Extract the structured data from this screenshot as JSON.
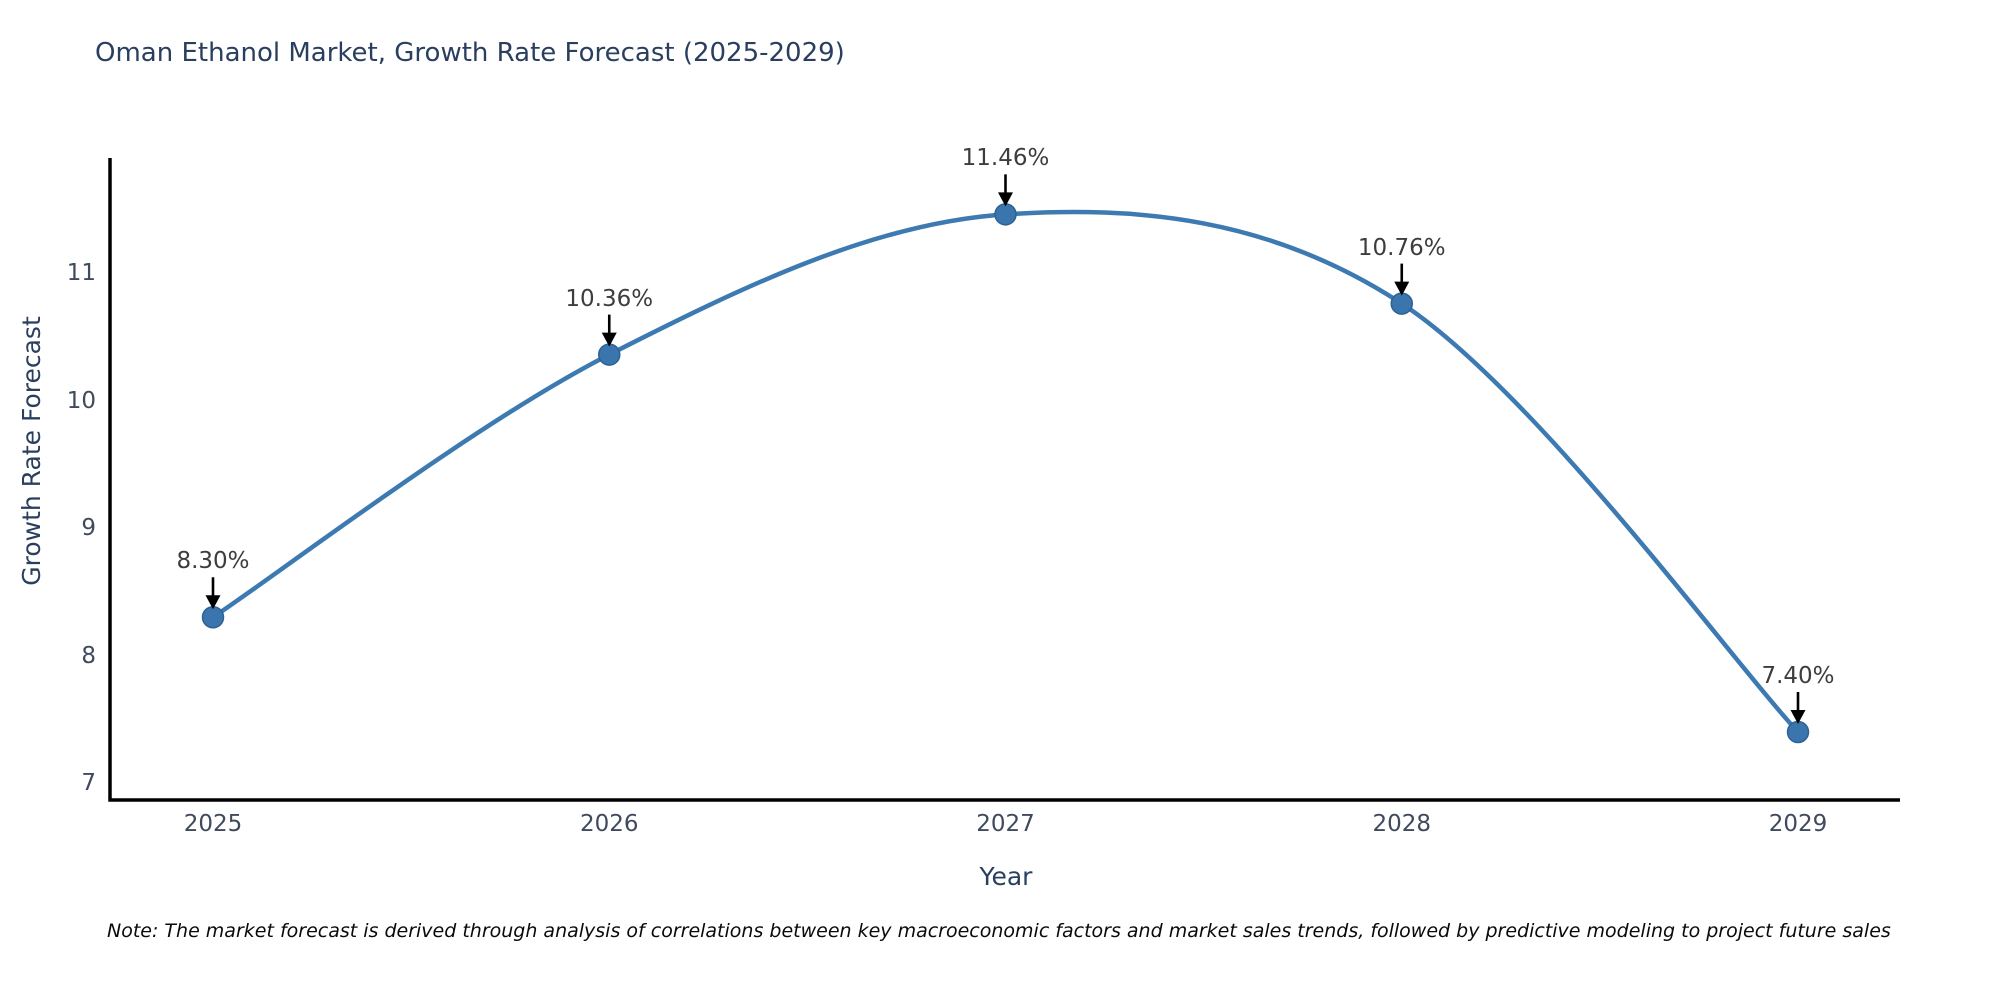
{
  "chart_data": {
    "type": "line",
    "title": "Oman Ethanol Market, Growth Rate Forecast (2025-2029)",
    "xlabel": "Year",
    "ylabel": "Growth Rate Forecast",
    "x": [
      2025,
      2026,
      2027,
      2028,
      2029
    ],
    "values": [
      8.3,
      10.36,
      11.46,
      10.76,
      7.4
    ],
    "point_labels": [
      "8.30%",
      "10.36%",
      "11.46%",
      "10.76%",
      "7.40%"
    ],
    "yticks": [
      7,
      8,
      9,
      10,
      11
    ],
    "ylim": [
      6.87,
      11.89
    ],
    "grid": false,
    "legend": "none",
    "line_shape": "spline",
    "line_color": "#3d7ab1",
    "marker_color": "#3a76ad",
    "marker_edge_color": "#2d6292",
    "axis_color": "#000000",
    "annotation_arrow_color": "#000000"
  },
  "note": "Note: The market forecast is derived through analysis of correlations between key macroeconomic factors and market sales trends, followed by predictive modeling to project future sales"
}
